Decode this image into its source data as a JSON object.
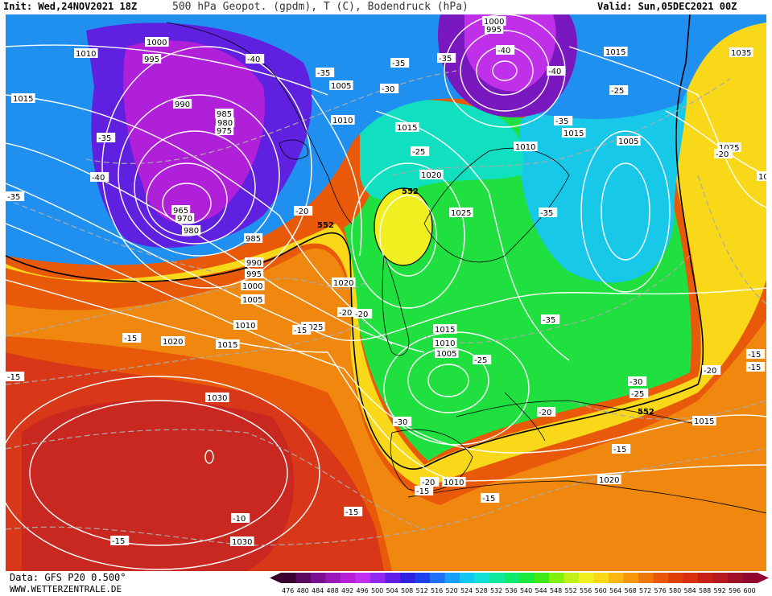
{
  "header": {
    "init": "Init: Wed,24NOV2021 18Z",
    "parameter": "500 hPa Geopot. (gpdm), T (C), Bodendruck (hPa)",
    "valid": "Valid: Sun,05DEC2021 00Z"
  },
  "footer": {
    "data_source": "Data: GFS P20 0.500°",
    "website": "WWW.WETTERZENTRALE.DE"
  },
  "color_scale": {
    "values": [
      "476",
      "480",
      "484",
      "488",
      "492",
      "496",
      "500",
      "504",
      "508",
      "512",
      "516",
      "520",
      "524",
      "528",
      "532",
      "536",
      "540",
      "544",
      "548",
      "552",
      "556",
      "560",
      "564",
      "568",
      "572",
      "576",
      "580",
      "584",
      "588",
      "592",
      "596",
      "600"
    ],
    "colors": [
      "#3a0030",
      "#5a0860",
      "#7a1090",
      "#9a18b8",
      "#b820d8",
      "#c030f0",
      "#9028f0",
      "#6020e8",
      "#3020e0",
      "#2040f0",
      "#2070f8",
      "#18a0f8",
      "#10c8f0",
      "#10e0d8",
      "#10e8a0",
      "#10e870",
      "#18e840",
      "#40e818",
      "#80f010",
      "#c0f018",
      "#f0f020",
      "#f8d818",
      "#f8b810",
      "#f89808",
      "#f07808",
      "#e85808",
      "#e04008",
      "#d83010",
      "#c82018",
      "#b81820",
      "#a01028",
      "#900830"
    ]
  },
  "map": {
    "isobar_labels": [
      "1000",
      "995",
      "1010",
      "1000",
      "995",
      "1015",
      "1015",
      "1005",
      "990",
      "985",
      "980",
      "975",
      "1010",
      "1015",
      "1010",
      "1005",
      "1015",
      "1025",
      "1020",
      "1025",
      "1035",
      "1020",
      "965",
      "970",
      "980",
      "985",
      "990",
      "995",
      "1000",
      "1005",
      "1010",
      "1020",
      "1015",
      "1025",
      "1020",
      "1015",
      "1010",
      "1005",
      "1030",
      "1030",
      "1010",
      "1020",
      "1015"
    ],
    "temp_labels": [
      "-40",
      "-35",
      "-40",
      "-40",
      "-35",
      "-40",
      "-35",
      "-35",
      "-35",
      "-30",
      "-25",
      "-35",
      "-20",
      "-35",
      "-25",
      "-20",
      "-20",
      "-15",
      "-15",
      "-15",
      "-15",
      "-10",
      "-15",
      "-15",
      "-15",
      "-20",
      "-25",
      "-30",
      "-20",
      "-30",
      "-25",
      "-15",
      "-15",
      "-20",
      "-35",
      "-20",
      "-15"
    ],
    "geopot_labels": [
      "552",
      "552",
      "552"
    ]
  }
}
